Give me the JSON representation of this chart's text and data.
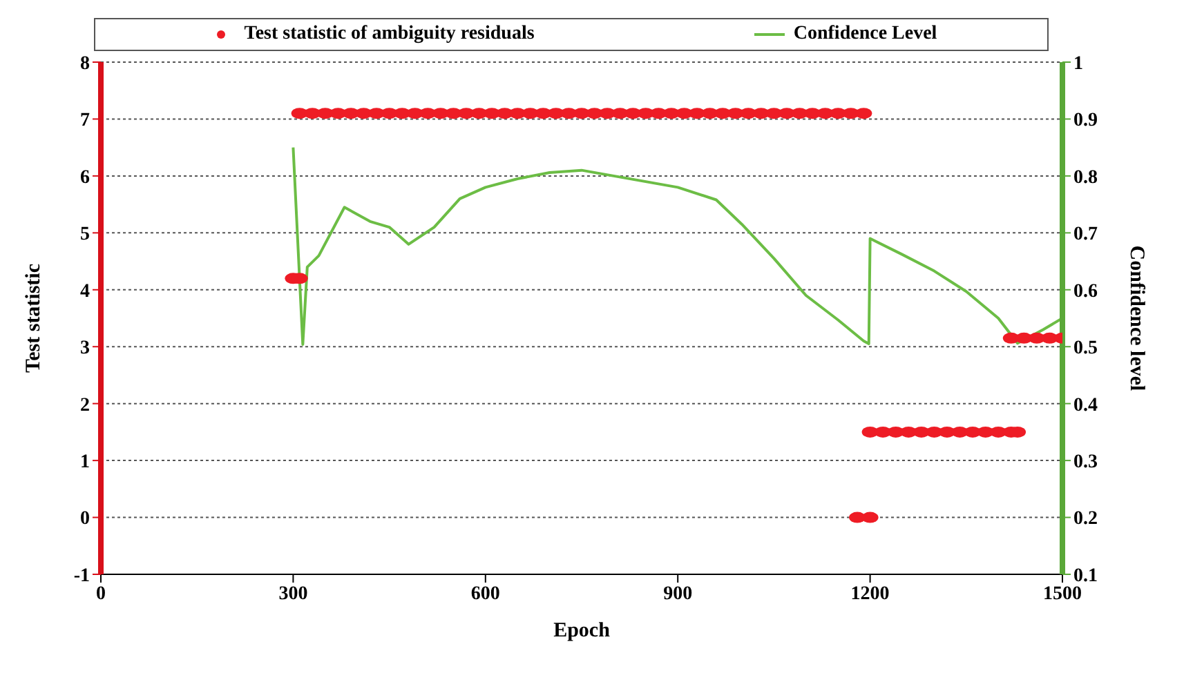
{
  "chart_data": {
    "type": "scatter",
    "xlabel": "Epoch",
    "ylabel": "Test statistic",
    "y2label": "Confidence level",
    "xlim": [
      0,
      1500
    ],
    "xticks": [
      0,
      300,
      600,
      900,
      1200,
      1500
    ],
    "ylim": [
      -1,
      8
    ],
    "yticks": [
      -1,
      0,
      1,
      2,
      3,
      4,
      5,
      6,
      7,
      8
    ],
    "y2lim": [
      0.1,
      1
    ],
    "y2ticks": [
      0.1,
      0.2,
      0.3,
      0.4,
      0.5,
      0.6,
      0.7,
      0.8,
      0.9,
      1
    ],
    "grid": "y",
    "legend": "top",
    "series": [
      {
        "name": "Test statistic of ambiguity residuals",
        "marker": "circle",
        "color": "#ee1c25",
        "x": [
          300,
          310,
          310,
          330,
          350,
          370,
          390,
          410,
          430,
          450,
          470,
          490,
          510,
          530,
          550,
          570,
          590,
          610,
          630,
          650,
          670,
          690,
          710,
          730,
          750,
          770,
          790,
          810,
          830,
          850,
          870,
          890,
          910,
          930,
          950,
          970,
          990,
          1010,
          1030,
          1050,
          1070,
          1090,
          1110,
          1130,
          1150,
          1170,
          1190,
          1180,
          1200,
          1200,
          1220,
          1240,
          1260,
          1280,
          1300,
          1320,
          1340,
          1360,
          1380,
          1400,
          1420,
          1430,
          1420,
          1440,
          1460,
          1480,
          1500
        ],
        "values": [
          4.2,
          4.2,
          7.1,
          7.1,
          7.1,
          7.1,
          7.1,
          7.1,
          7.1,
          7.1,
          7.1,
          7.1,
          7.1,
          7.1,
          7.1,
          7.1,
          7.1,
          7.1,
          7.1,
          7.1,
          7.1,
          7.1,
          7.1,
          7.1,
          7.1,
          7.1,
          7.1,
          7.1,
          7.1,
          7.1,
          7.1,
          7.1,
          7.1,
          7.1,
          7.1,
          7.1,
          7.1,
          7.1,
          7.1,
          7.1,
          7.1,
          7.1,
          7.1,
          7.1,
          7.1,
          7.1,
          7.1,
          0,
          0,
          1.5,
          1.5,
          1.5,
          1.5,
          1.5,
          1.5,
          1.5,
          1.5,
          1.5,
          1.5,
          1.5,
          1.5,
          1.5,
          3.15,
          3.15,
          3.15,
          3.15,
          3.15
        ]
      },
      {
        "name": "Confidence Level",
        "type": "line",
        "axis": "y2",
        "color": "#6cbd45",
        "x": [
          300,
          315,
          322,
          340,
          380,
          420,
          450,
          480,
          520,
          560,
          600,
          650,
          700,
          750,
          800,
          900,
          960,
          1000,
          1050,
          1100,
          1150,
          1190,
          1198,
          1200,
          1250,
          1300,
          1350,
          1400,
          1430,
          1470,
          1500
        ],
        "values": [
          0.85,
          0.504,
          0.64,
          0.66,
          0.745,
          0.72,
          0.71,
          0.68,
          0.71,
          0.76,
          0.78,
          0.795,
          0.806,
          0.81,
          0.8,
          0.78,
          0.758,
          0.715,
          0.655,
          0.59,
          0.547,
          0.51,
          0.505,
          0.69,
          0.662,
          0.633,
          0.597,
          0.55,
          0.506,
          0.53,
          0.55
        ]
      }
    ]
  }
}
